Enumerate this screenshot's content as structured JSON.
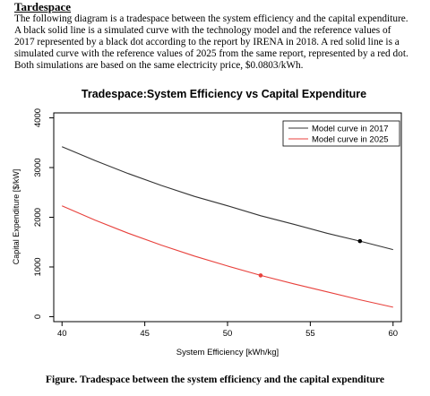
{
  "heading": "Tardespace",
  "paragraph_lines": [
    "The following diagram is a tradespace between the system efficiency and the capital expenditure.",
    "A black solid line is a simulated curve with the technology model and the reference values of",
    "2017 represented by a black dot according to the report by IRENA in 2018.  A red solid line is a",
    "simulated curve with the reference values of 2025 from the same report, represented by a red dot.",
    "Both simulations are based on the same electricity price, $0.0803/kWh."
  ],
  "caption": "Figure. Tradespace between the system efficiency and the capital expenditure",
  "colors": {
    "series_2017": "#333333",
    "series_2025": "#e8413c",
    "axis": "#000000"
  },
  "chart_data": {
    "type": "line",
    "title": "Tradespace:System Efficiency vs Capital Expenditure",
    "xlabel": "System Efficiency [kWh/kg]",
    "ylabel": "Capital Expenditure [$/kW]",
    "xlim": [
      39.5,
      60.5
    ],
    "ylim": [
      -100,
      4100
    ],
    "xticks": [
      40,
      45,
      50,
      55,
      60
    ],
    "yticks": [
      0,
      1000,
      2000,
      3000,
      4000
    ],
    "grid": false,
    "legend_position": "top-right",
    "series": [
      {
        "name": "Model curve in 2017",
        "color": "#333333",
        "x": [
          40,
          42,
          44,
          46,
          48,
          50,
          52,
          54,
          56,
          58,
          60
        ],
        "y": [
          3420,
          3140,
          2880,
          2640,
          2420,
          2230,
          2030,
          1860,
          1680,
          1520,
          1350
        ],
        "marker": {
          "x": 58,
          "y": 1520
        }
      },
      {
        "name": "Model curve in 2025",
        "color": "#e8413c",
        "x": [
          40,
          42,
          44,
          46,
          48,
          50,
          52,
          54,
          56,
          58,
          60
        ],
        "y": [
          2230,
          1940,
          1680,
          1440,
          1220,
          1020,
          830,
          660,
          500,
          340,
          190
        ],
        "marker": {
          "x": 52,
          "y": 830
        }
      }
    ]
  }
}
